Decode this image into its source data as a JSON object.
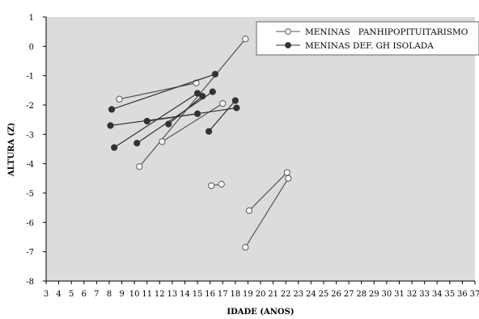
{
  "chart_data": {
    "type": "line",
    "xlabel": "IDADE (ANOS)",
    "ylabel": "ALTURA (Z)",
    "xlim": [
      3,
      37
    ],
    "ylim": [
      -8,
      1
    ],
    "x_ticks": [
      3,
      4,
      5,
      6,
      7,
      8,
      9,
      10,
      11,
      12,
      13,
      14,
      15,
      16,
      17,
      18,
      19,
      20,
      21,
      22,
      23,
      24,
      25,
      26,
      27,
      28,
      29,
      30,
      31,
      32,
      33,
      34,
      35,
      36,
      37
    ],
    "y_ticks": [
      1,
      0,
      -1,
      -2,
      -3,
      -4,
      -5,
      -6,
      -7,
      -8
    ],
    "grid": false,
    "legend_position": "top-right",
    "plot_background": "#dcdcdc",
    "series": [
      {
        "name": "MENINAS   PANHIPOPITUITARISMO",
        "marker": "open-circle",
        "color": "#555555",
        "segments": [
          [
            [
              8.8,
              -1.8
            ],
            [
              14.9,
              -1.25
            ]
          ],
          [
            [
              10.4,
              -4.1
            ],
            [
              18.8,
              0.25
            ]
          ],
          [
            [
              12.2,
              -3.25
            ],
            [
              17.0,
              -1.95
            ]
          ],
          [
            [
              16.1,
              -4.75
            ],
            [
              16.9,
              -4.7
            ]
          ],
          [
            [
              19.1,
              -5.6
            ],
            [
              22.1,
              -4.3
            ]
          ],
          [
            [
              18.8,
              -6.85
            ],
            [
              22.2,
              -4.5
            ]
          ]
        ]
      },
      {
        "name": "MENINAS DEF. GH ISOLADA",
        "marker": "filled-circle",
        "color": "#333333",
        "segments": [
          [
            [
              8.2,
              -2.15
            ],
            [
              16.4,
              -0.95
            ]
          ],
          [
            [
              8.1,
              -2.7
            ],
            [
              15.0,
              -2.3
            ]
          ],
          [
            [
              8.4,
              -3.45
            ],
            [
              15.0,
              -1.6
            ]
          ],
          [
            [
              10.2,
              -3.3
            ],
            [
              16.2,
              -1.55
            ]
          ],
          [
            [
              11.0,
              -2.55
            ],
            [
              18.1,
              -2.1
            ]
          ],
          [
            [
              12.7,
              -2.65
            ],
            [
              15.4,
              -1.7
            ]
          ],
          [
            [
              15.9,
              -2.9
            ],
            [
              18.0,
              -1.85
            ]
          ]
        ]
      }
    ]
  }
}
